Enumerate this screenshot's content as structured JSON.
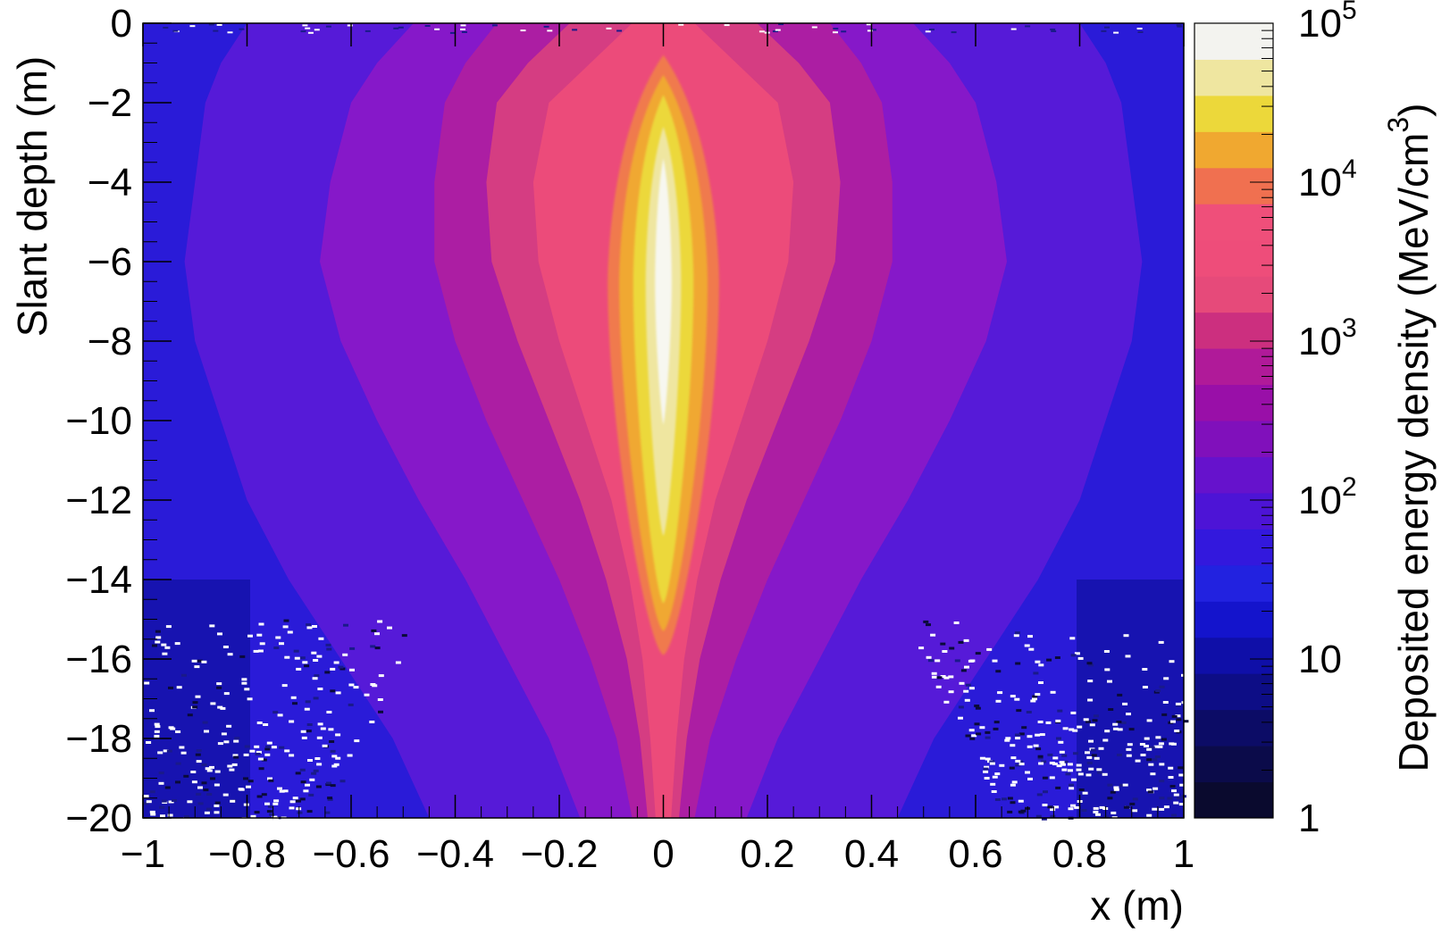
{
  "chart_data": {
    "type": "heatmap",
    "title": "",
    "xlabel": "x (m)",
    "ylabel": "Slant depth (m)",
    "xlim": [
      -1,
      1
    ],
    "ylim": [
      -20,
      0
    ],
    "x_ticks": [
      {
        "value": -1,
        "label": "−1"
      },
      {
        "value": -0.8,
        "label": "−0.8"
      },
      {
        "value": -0.6,
        "label": "−0.6"
      },
      {
        "value": -0.4,
        "label": "−0.4"
      },
      {
        "value": -0.2,
        "label": "−0.2"
      },
      {
        "value": 0,
        "label": "0"
      },
      {
        "value": 0.2,
        "label": "0.2"
      },
      {
        "value": 0.4,
        "label": "0.4"
      },
      {
        "value": 0.6,
        "label": "0.6"
      },
      {
        "value": 0.8,
        "label": "0.8"
      },
      {
        "value": 1,
        "label": "1"
      }
    ],
    "y_ticks": [
      {
        "value": 0,
        "label": "0"
      },
      {
        "value": -2,
        "label": "−2"
      },
      {
        "value": -4,
        "label": "−4"
      },
      {
        "value": -6,
        "label": "−6"
      },
      {
        "value": -8,
        "label": "−8"
      },
      {
        "value": -10,
        "label": "−10"
      },
      {
        "value": -12,
        "label": "−12"
      },
      {
        "value": -14,
        "label": "−14"
      },
      {
        "value": -16,
        "label": "−16"
      },
      {
        "value": -18,
        "label": "−18"
      },
      {
        "value": -20,
        "label": "−20"
      }
    ],
    "colorbar": {
      "label": "Deposited energy density (MeV/cm",
      "label_superscript": "3",
      "label_close": ")",
      "scale": "log",
      "range": [
        1,
        100000
      ],
      "ticks": [
        {
          "value": 1,
          "base": "1",
          "exp": ""
        },
        {
          "value": 10,
          "base": "10",
          "exp": ""
        },
        {
          "value": 100,
          "base": "10",
          "exp": "2"
        },
        {
          "value": 1000,
          "base": "10",
          "exp": "3"
        },
        {
          "value": 10000,
          "base": "10",
          "exp": "4"
        },
        {
          "value": 100000,
          "base": "10",
          "exp": "5"
        }
      ],
      "colors": [
        "#0a0a2e",
        "#0b0b4a",
        "#0c0c66",
        "#0d0d86",
        "#0f0fa8",
        "#1414cc",
        "#2222e0",
        "#3318dd",
        "#4d14d6",
        "#6612cc",
        "#8010bb",
        "#990fa8",
        "#b01a99",
        "#cc2f7f",
        "#e64a7a",
        "#ee4d7a",
        "#ef4f7a",
        "#f07050",
        "#f0a830",
        "#ecd83a",
        "#efe6a0",
        "#f3f3ef"
      ]
    },
    "features": {
      "core": {
        "x": 0,
        "y_top": -0.8,
        "y_bottom": -15.9,
        "peak_y": -6.5,
        "peak_value": 100000
      },
      "halo_shape": "bright narrow core along x=0 spreading outward with depth; low-density white/empty bins at large |x| below −15 m"
    }
  }
}
